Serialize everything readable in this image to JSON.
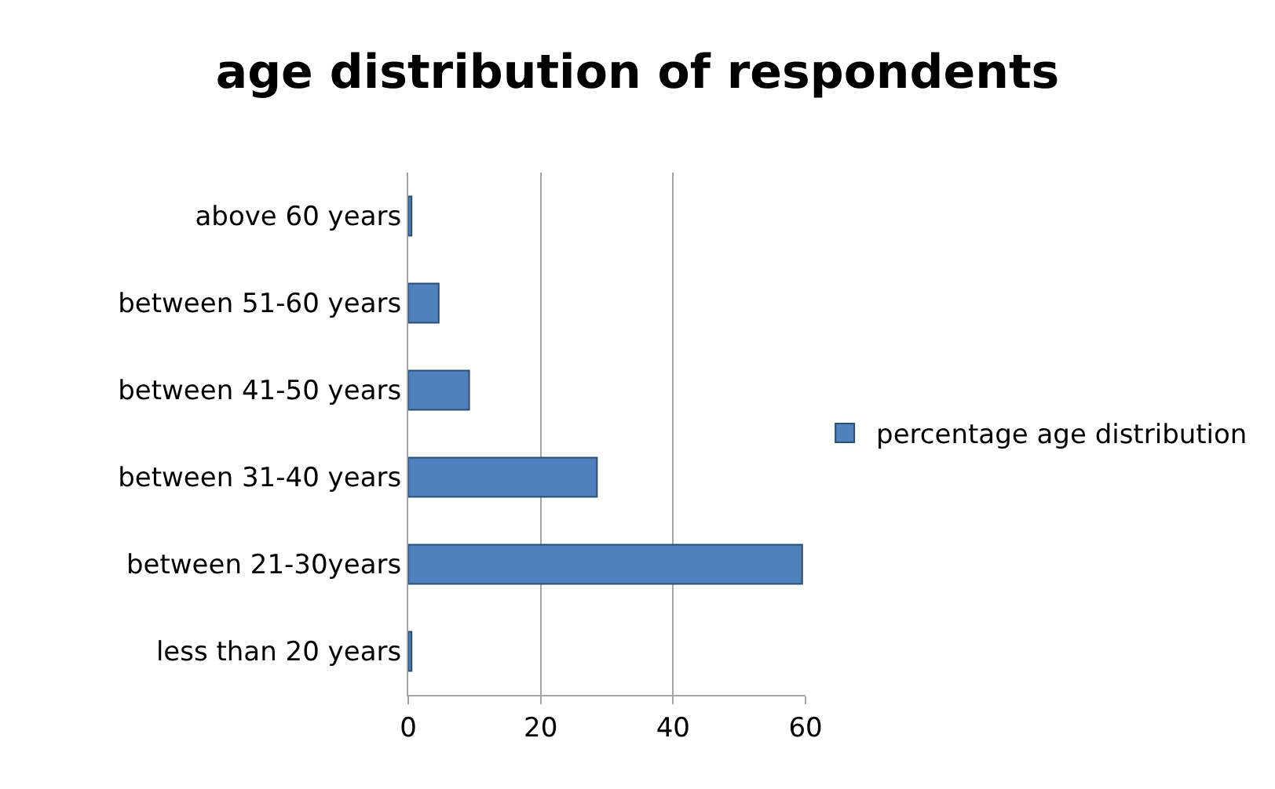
{
  "chart_data": {
    "type": "bar",
    "orientation": "horizontal",
    "title": "age distribution of respondents",
    "categories": [
      "above 60 years",
      "between 51-60 years",
      "between 41-50 years",
      "between 31-40 years",
      "between 21-30years",
      "less than 20 years"
    ],
    "series": [
      {
        "name": "percentage age distribution",
        "color": "#4f81bd",
        "values": [
          0.5,
          4.6,
          9.2,
          28.5,
          59.5,
          0.5
        ]
      }
    ],
    "xlim": [
      0,
      60
    ],
    "xticks": [
      0,
      20,
      40,
      60
    ],
    "grid": "x",
    "legend": "right"
  }
}
